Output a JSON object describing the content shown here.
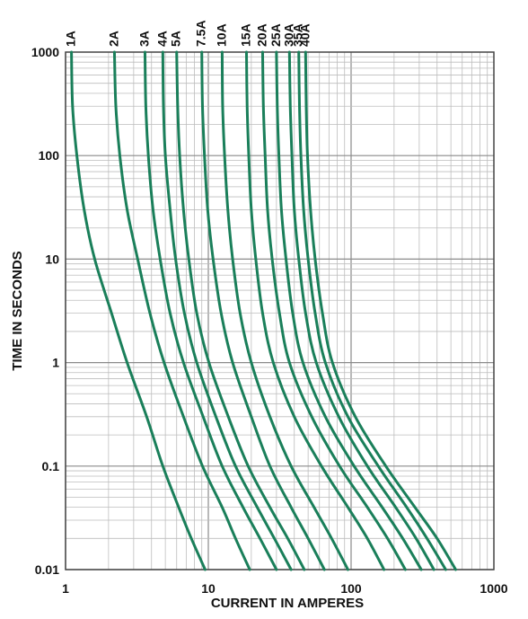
{
  "chart_data": {
    "type": "line",
    "title": "",
    "xlabel": "CURRENT IN AMPERES",
    "ylabel": "TIME IN SECONDS",
    "x_scale": "log",
    "y_scale": "log",
    "xlim": [
      1,
      1000
    ],
    "ylim": [
      0.01,
      1000
    ],
    "grid": true,
    "x_ticks": [
      "1",
      "10",
      "100",
      "1000"
    ],
    "y_ticks": [
      "0.01",
      "0.1",
      "1",
      "10",
      "100",
      "1000"
    ],
    "series_color": "#1a7f5a",
    "series": [
      {
        "name": "1A",
        "points": [
          [
            1.1,
            1000
          ],
          [
            1.12,
            300
          ],
          [
            1.2,
            100
          ],
          [
            1.35,
            30
          ],
          [
            1.6,
            10
          ],
          [
            2.1,
            3
          ],
          [
            2.7,
            1
          ],
          [
            3.7,
            0.3
          ],
          [
            4.8,
            0.1
          ],
          [
            6.2,
            0.04
          ],
          [
            7.6,
            0.02
          ],
          [
            9.5,
            0.01
          ]
        ]
      },
      {
        "name": "2A",
        "points": [
          [
            2.2,
            1000
          ],
          [
            2.25,
            300
          ],
          [
            2.4,
            100
          ],
          [
            2.7,
            30
          ],
          [
            3.2,
            10
          ],
          [
            3.9,
            3
          ],
          [
            4.9,
            1
          ],
          [
            6.7,
            0.3
          ],
          [
            9.1,
            0.1
          ],
          [
            12.5,
            0.04
          ],
          [
            15.5,
            0.02
          ],
          [
            19.5,
            0.01
          ]
        ]
      },
      {
        "name": "3A",
        "points": [
          [
            3.6,
            1000
          ],
          [
            3.65,
            300
          ],
          [
            3.8,
            100
          ],
          [
            4.1,
            30
          ],
          [
            4.6,
            10
          ],
          [
            5.4,
            3
          ],
          [
            6.7,
            1
          ],
          [
            9.2,
            0.3
          ],
          [
            12.5,
            0.1
          ],
          [
            17.5,
            0.04
          ],
          [
            23,
            0.02
          ],
          [
            30,
            0.01
          ]
        ]
      },
      {
        "name": "4A",
        "points": [
          [
            4.8,
            1000
          ],
          [
            4.85,
            300
          ],
          [
            5.0,
            100
          ],
          [
            5.4,
            30
          ],
          [
            5.9,
            10
          ],
          [
            6.8,
            3
          ],
          [
            8.3,
            1
          ],
          [
            11.3,
            0.3
          ],
          [
            15.5,
            0.1
          ],
          [
            22,
            0.04
          ],
          [
            29,
            0.02
          ],
          [
            38,
            0.01
          ]
        ]
      },
      {
        "name": "5A",
        "points": [
          [
            6.0,
            1000
          ],
          [
            6.1,
            300
          ],
          [
            6.3,
            100
          ],
          [
            6.7,
            30
          ],
          [
            7.3,
            10
          ],
          [
            8.3,
            3
          ],
          [
            10.1,
            1
          ],
          [
            13.8,
            0.3
          ],
          [
            19,
            0.1
          ],
          [
            27,
            0.04
          ],
          [
            36,
            0.02
          ],
          [
            47,
            0.01
          ]
        ]
      },
      {
        "name": "7.5A",
        "points": [
          [
            9.0,
            1000
          ],
          [
            9.1,
            300
          ],
          [
            9.4,
            100
          ],
          [
            9.9,
            30
          ],
          [
            10.8,
            10
          ],
          [
            12.3,
            3
          ],
          [
            14.8,
            1
          ],
          [
            20,
            0.3
          ],
          [
            27,
            0.1
          ],
          [
            38,
            0.04
          ],
          [
            50,
            0.02
          ],
          [
            65,
            0.01
          ]
        ]
      },
      {
        "name": "10A",
        "points": [
          [
            12.5,
            1000
          ],
          [
            12.6,
            300
          ],
          [
            13,
            100
          ],
          [
            13.7,
            30
          ],
          [
            14.8,
            10
          ],
          [
            16.7,
            3
          ],
          [
            20,
            1
          ],
          [
            27,
            0.3
          ],
          [
            38,
            0.1
          ],
          [
            55,
            0.04
          ],
          [
            73,
            0.02
          ],
          [
            95,
            0.01
          ]
        ]
      },
      {
        "name": "15A",
        "points": [
          [
            18.5,
            1000
          ],
          [
            18.7,
            300
          ],
          [
            19.2,
            100
          ],
          [
            20,
            30
          ],
          [
            21.5,
            10
          ],
          [
            24,
            3
          ],
          [
            28.5,
            1
          ],
          [
            40,
            0.3
          ],
          [
            62,
            0.1
          ],
          [
            95,
            0.04
          ],
          [
            130,
            0.02
          ],
          [
            170,
            0.01
          ]
        ]
      },
      {
        "name": "20A",
        "points": [
          [
            24,
            1000
          ],
          [
            24.3,
            300
          ],
          [
            25,
            100
          ],
          [
            26,
            30
          ],
          [
            28,
            10
          ],
          [
            31.5,
            3
          ],
          [
            37,
            1
          ],
          [
            53,
            0.3
          ],
          [
            83,
            0.1
          ],
          [
            130,
            0.04
          ],
          [
            180,
            0.02
          ],
          [
            240,
            0.01
          ]
        ]
      },
      {
        "name": "25A",
        "points": [
          [
            30,
            1000
          ],
          [
            30.4,
            300
          ],
          [
            31.2,
            100
          ],
          [
            32.5,
            30
          ],
          [
            35,
            10
          ],
          [
            39,
            3
          ],
          [
            46,
            1
          ],
          [
            66,
            0.3
          ],
          [
            105,
            0.1
          ],
          [
            165,
            0.04
          ],
          [
            230,
            0.02
          ],
          [
            310,
            0.01
          ]
        ]
      },
      {
        "name": "30A",
        "points": [
          [
            37,
            1000
          ],
          [
            37.5,
            300
          ],
          [
            38.5,
            100
          ],
          [
            40,
            30
          ],
          [
            43,
            10
          ],
          [
            48,
            3
          ],
          [
            57,
            1
          ],
          [
            82,
            0.3
          ],
          [
            130,
            0.1
          ],
          [
            205,
            0.04
          ],
          [
            285,
            0.02
          ],
          [
            380,
            0.01
          ]
        ]
      },
      {
        "name": "35A",
        "points": [
          [
            43,
            1000
          ],
          [
            43.5,
            300
          ],
          [
            44.5,
            100
          ],
          [
            46.5,
            30
          ],
          [
            50,
            10
          ],
          [
            56,
            3
          ],
          [
            66,
            1
          ],
          [
            95,
            0.3
          ],
          [
            155,
            0.1
          ],
          [
            245,
            0.04
          ],
          [
            340,
            0.02
          ],
          [
            460,
            0.01
          ]
        ]
      },
      {
        "name": "40A",
        "points": [
          [
            48,
            1000
          ],
          [
            48.5,
            300
          ],
          [
            49.5,
            100
          ],
          [
            52,
            30
          ],
          [
            56,
            10
          ],
          [
            63,
            3
          ],
          [
            74,
            1
          ],
          [
            107,
            0.3
          ],
          [
            175,
            0.1
          ],
          [
            280,
            0.04
          ],
          [
            400,
            0.02
          ],
          [
            540,
            0.01
          ]
        ]
      }
    ]
  }
}
